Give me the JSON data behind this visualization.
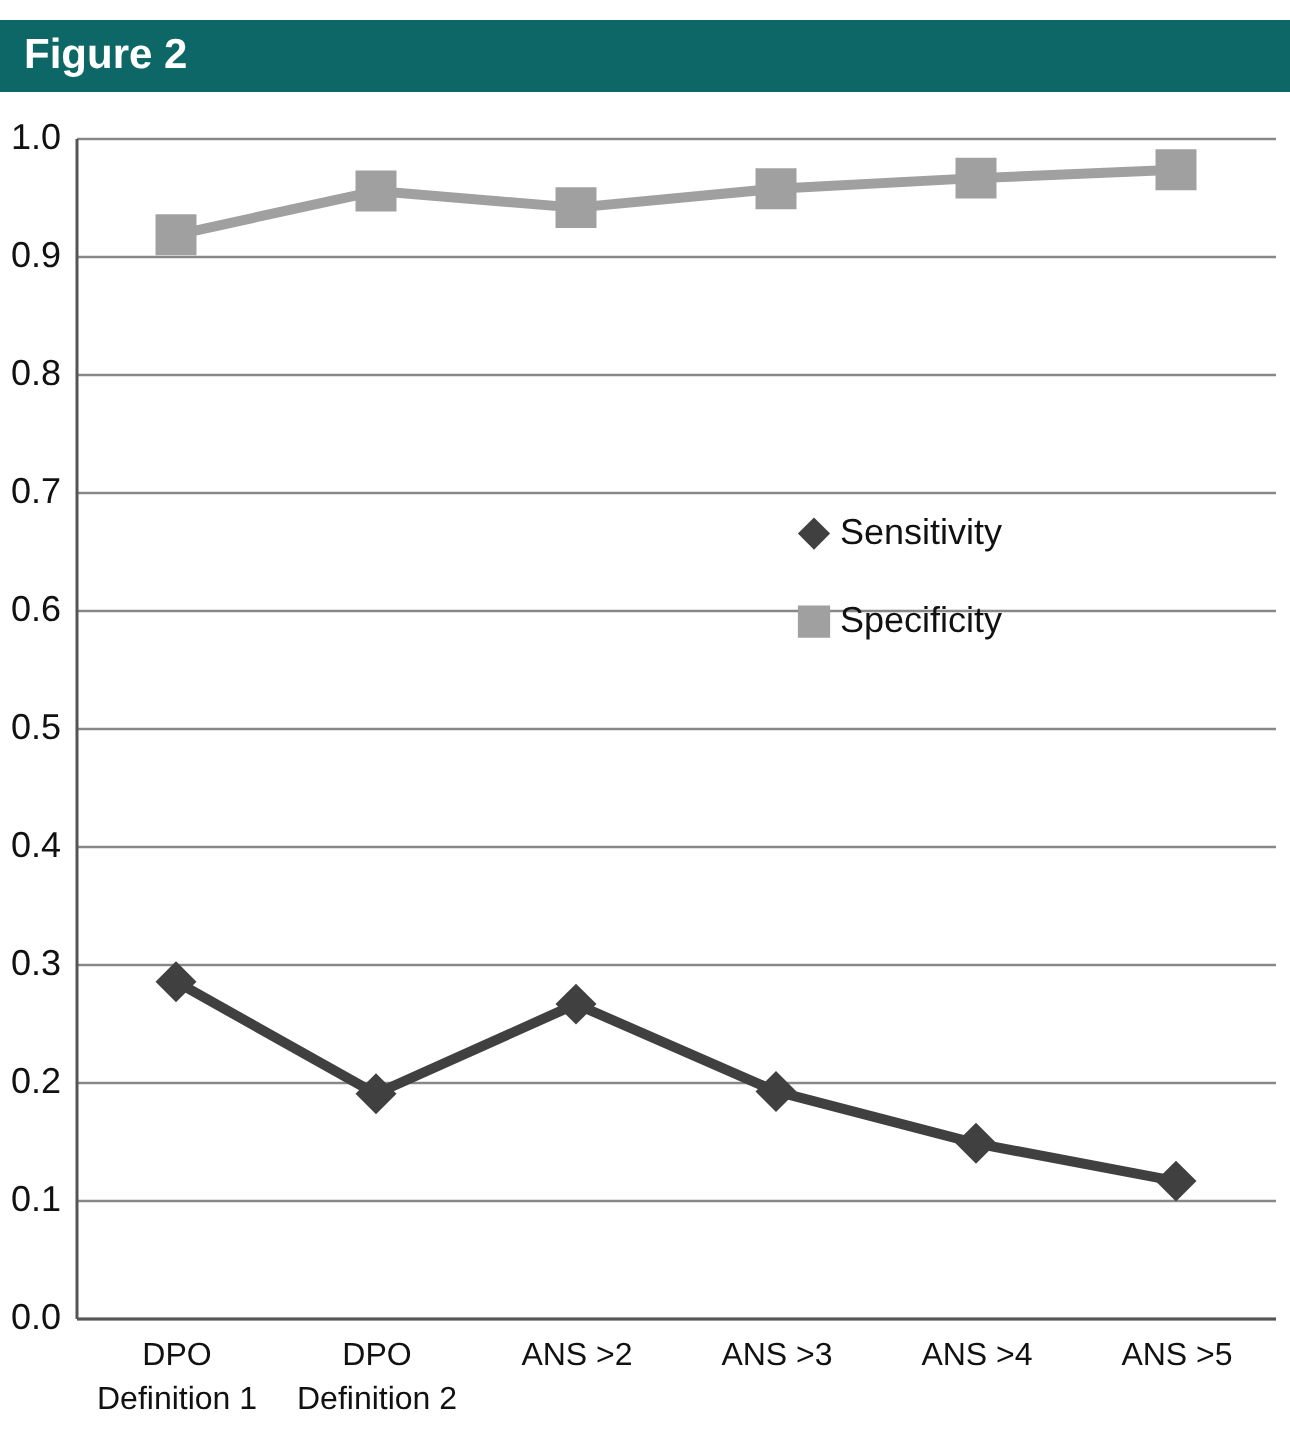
{
  "chart_data": {
    "type": "line",
    "title": "Figure 2",
    "categories": [
      "DPO\nDefinition 1",
      "DPO\nDefinition 2",
      "ANS >2",
      "ANS >3",
      "ANS >4",
      "ANS >5"
    ],
    "series": [
      {
        "name": "Sensitivity",
        "color": "#404040",
        "marker": "diamond",
        "values": [
          0.285,
          0.19,
          0.266,
          0.192,
          0.148,
          0.116
        ]
      },
      {
        "name": "Specificity",
        "color": "#a0a0a0",
        "marker": "square",
        "values": [
          0.918,
          0.955,
          0.941,
          0.957,
          0.966,
          0.973
        ]
      }
    ],
    "ylim": [
      0,
      1
    ],
    "yticks": [
      {
        "value": 0,
        "label": "0.0"
      },
      0.1,
      0.2,
      0.3,
      0.4,
      0.5,
      0.6,
      0.7,
      0.8,
      0.9,
      {
        "value": 1,
        "label": "1.0"
      }
    ],
    "grid": "y",
    "legend": "right",
    "line_style": "solid"
  }
}
